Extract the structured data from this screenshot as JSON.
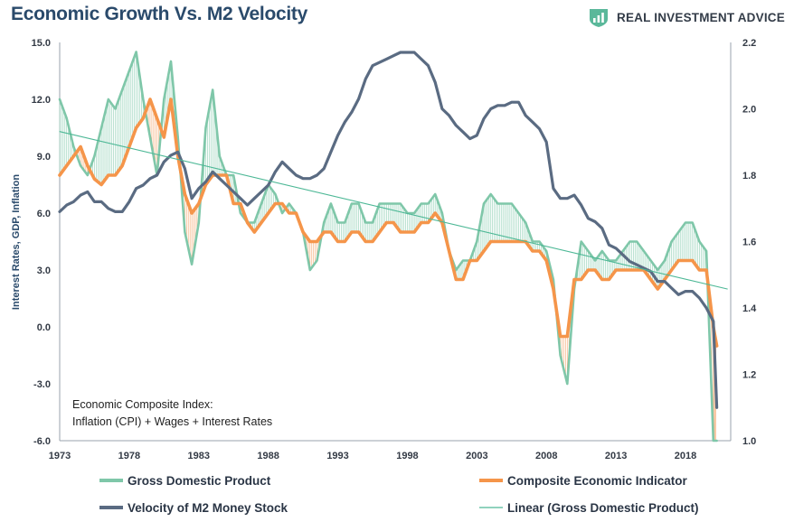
{
  "header": {
    "title": "Economic Growth Vs. M2 Velocity",
    "brand": "REAL INVESTMENT ADVICE",
    "brand_icon": "chart-shield-icon"
  },
  "colors": {
    "gdp": "#7fc7a9",
    "composite": "#f5954a",
    "velocity": "#5a6b82",
    "linear": "#4db896",
    "title": "#2a4a6b"
  },
  "chart_data": {
    "type": "line",
    "title": "Economic Growth Vs. M2 Velocity",
    "ylabel": "Interest Rates, GDP, Inflation",
    "y2label": "",
    "xlim": [
      1973,
      2021.25
    ],
    "ylim": [
      -6.0,
      15.0
    ],
    "y2lim": [
      1.0,
      2.2
    ],
    "x_ticks": [
      "1973",
      "1978",
      "1983",
      "1988",
      "1993",
      "1998",
      "2003",
      "2008",
      "2013",
      "2018"
    ],
    "y_ticks": [
      "15.0",
      "12.0",
      "9.0",
      "6.0",
      "3.0",
      "0.0",
      "-3.0",
      "-6.0"
    ],
    "y2_ticks": [
      "2.2",
      "2.0",
      "1.8",
      "1.6",
      "1.4",
      "1.2",
      "1.0"
    ],
    "grid": false,
    "legend_position": "bottom",
    "annotation": [
      "Economic Composite Index:",
      "Inflation (CPI) + Wages + Interest Rates"
    ],
    "series": [
      {
        "name": "Gross Domestic Product",
        "axis": "left",
        "x": [
          1973.0,
          1973.5,
          1974.0,
          1974.5,
          1975.0,
          1975.5,
          1976.0,
          1976.5,
          1977.0,
          1977.5,
          1978.0,
          1978.5,
          1979.0,
          1979.5,
          1980.0,
          1980.5,
          1981.0,
          1981.5,
          1982.0,
          1982.5,
          1983.0,
          1983.5,
          1984.0,
          1984.5,
          1985.0,
          1985.5,
          1986.0,
          1986.5,
          1987.0,
          1987.5,
          1988.0,
          1988.5,
          1989.0,
          1989.5,
          1990.0,
          1990.5,
          1991.0,
          1991.5,
          1992.0,
          1992.5,
          1993.0,
          1993.5,
          1994.0,
          1994.5,
          1995.0,
          1995.5,
          1996.0,
          1996.5,
          1997.0,
          1997.5,
          1998.0,
          1998.5,
          1999.0,
          1999.5,
          2000.0,
          2000.5,
          2001.0,
          2001.5,
          2002.0,
          2002.5,
          2003.0,
          2003.5,
          2004.0,
          2004.5,
          2005.0,
          2005.5,
          2006.0,
          2006.5,
          2007.0,
          2007.5,
          2008.0,
          2008.5,
          2009.0,
          2009.5,
          2010.0,
          2010.5,
          2011.0,
          2011.5,
          2012.0,
          2012.5,
          2013.0,
          2013.5,
          2014.0,
          2014.5,
          2015.0,
          2015.5,
          2016.0,
          2016.5,
          2017.0,
          2017.5,
          2018.0,
          2018.5,
          2019.0,
          2019.5,
          2020.0,
          2020.25
        ],
        "values": [
          12.0,
          11.0,
          9.5,
          8.5,
          8.0,
          9.0,
          10.5,
          12.0,
          11.5,
          12.5,
          13.5,
          14.5,
          12.0,
          10.0,
          8.0,
          12.0,
          14.0,
          10.0,
          5.0,
          3.3,
          5.5,
          10.5,
          12.5,
          9.0,
          8.0,
          8.0,
          6.0,
          5.5,
          5.5,
          6.5,
          7.5,
          7.0,
          6.0,
          6.5,
          6.0,
          5.0,
          3.0,
          3.5,
          5.5,
          6.5,
          5.5,
          5.5,
          6.5,
          6.5,
          5.5,
          5.5,
          6.5,
          6.5,
          6.5,
          6.5,
          6.0,
          6.0,
          6.5,
          6.5,
          7.0,
          6.0,
          4.0,
          3.0,
          3.5,
          3.5,
          4.5,
          6.5,
          7.0,
          6.5,
          6.5,
          6.5,
          6.0,
          5.5,
          4.5,
          4.5,
          4.0,
          2.5,
          -1.5,
          -3.0,
          2.0,
          4.5,
          4.0,
          3.5,
          4.0,
          3.5,
          3.5,
          4.0,
          4.5,
          4.5,
          4.0,
          3.5,
          3.0,
          3.5,
          4.5,
          5.0,
          5.5,
          5.5,
          4.5,
          4.0,
          -6.0,
          -6.0
        ]
      },
      {
        "name": "Composite Economic Indicator",
        "axis": "left",
        "x": [
          1973.0,
          1973.5,
          1974.0,
          1974.5,
          1975.0,
          1975.5,
          1976.0,
          1976.5,
          1977.0,
          1977.5,
          1978.0,
          1978.5,
          1979.0,
          1979.5,
          1980.0,
          1980.5,
          1981.0,
          1981.5,
          1982.0,
          1982.5,
          1983.0,
          1983.5,
          1984.0,
          1984.5,
          1985.0,
          1985.5,
          1986.0,
          1986.5,
          1987.0,
          1987.5,
          1988.0,
          1988.5,
          1989.0,
          1989.5,
          1990.0,
          1990.5,
          1991.0,
          1991.5,
          1992.0,
          1992.5,
          1993.0,
          1993.5,
          1994.0,
          1994.5,
          1995.0,
          1995.5,
          1996.0,
          1996.5,
          1997.0,
          1997.5,
          1998.0,
          1998.5,
          1999.0,
          1999.5,
          2000.0,
          2000.5,
          2001.0,
          2001.5,
          2002.0,
          2002.5,
          2003.0,
          2003.5,
          2004.0,
          2004.5,
          2005.0,
          2005.5,
          2006.0,
          2006.5,
          2007.0,
          2007.5,
          2008.0,
          2008.5,
          2009.0,
          2009.5,
          2010.0,
          2010.5,
          2011.0,
          2011.5,
          2012.0,
          2012.5,
          2013.0,
          2013.5,
          2014.0,
          2014.5,
          2015.0,
          2015.5,
          2016.0,
          2016.5,
          2017.0,
          2017.5,
          2018.0,
          2018.5,
          2019.0,
          2019.5,
          2020.0,
          2020.25
        ],
        "values": [
          8.0,
          8.5,
          9.0,
          9.5,
          8.5,
          7.8,
          7.5,
          8.0,
          8.0,
          8.5,
          9.5,
          10.5,
          11.0,
          12.0,
          11.0,
          10.0,
          12.0,
          9.0,
          7.0,
          6.0,
          6.5,
          7.5,
          8.0,
          8.0,
          8.0,
          6.5,
          6.5,
          5.5,
          5.0,
          5.5,
          6.0,
          6.5,
          6.5,
          6.0,
          6.0,
          5.0,
          4.5,
          4.5,
          5.0,
          5.0,
          4.5,
          4.5,
          5.0,
          5.0,
          4.5,
          4.5,
          5.0,
          5.5,
          5.5,
          5.0,
          5.0,
          5.0,
          5.5,
          5.5,
          6.0,
          5.5,
          4.0,
          2.5,
          2.5,
          3.5,
          3.5,
          4.0,
          4.5,
          4.5,
          4.5,
          4.5,
          4.5,
          4.5,
          4.0,
          4.0,
          3.5,
          2.0,
          -0.5,
          -0.5,
          2.5,
          2.5,
          3.0,
          3.0,
          2.5,
          2.5,
          3.0,
          3.0,
          3.0,
          3.0,
          3.0,
          2.5,
          2.0,
          2.5,
          3.0,
          3.5,
          3.5,
          3.5,
          3.0,
          3.0,
          0.0,
          -1.0
        ]
      },
      {
        "name": "Velocity of M2 Money Stock",
        "axis": "right",
        "x": [
          1973.0,
          1973.5,
          1974.0,
          1974.5,
          1975.0,
          1975.5,
          1976.0,
          1976.5,
          1977.0,
          1977.5,
          1978.0,
          1978.5,
          1979.0,
          1979.5,
          1980.0,
          1980.5,
          1981.0,
          1981.5,
          1982.0,
          1982.5,
          1983.0,
          1983.5,
          1984.0,
          1984.5,
          1985.0,
          1985.5,
          1986.0,
          1986.5,
          1987.0,
          1987.5,
          1988.0,
          1988.5,
          1989.0,
          1989.5,
          1990.0,
          1990.5,
          1991.0,
          1991.5,
          1992.0,
          1992.5,
          1993.0,
          1993.5,
          1994.0,
          1994.5,
          1995.0,
          1995.5,
          1996.0,
          1996.5,
          1997.0,
          1997.5,
          1998.0,
          1998.5,
          1999.0,
          1999.5,
          2000.0,
          2000.5,
          2001.0,
          2001.5,
          2002.0,
          2002.5,
          2003.0,
          2003.5,
          2004.0,
          2004.5,
          2005.0,
          2005.5,
          2006.0,
          2006.5,
          2007.0,
          2007.5,
          2008.0,
          2008.5,
          2009.0,
          2009.5,
          2010.0,
          2010.5,
          2011.0,
          2011.5,
          2012.0,
          2012.5,
          2013.0,
          2013.5,
          2014.0,
          2014.5,
          2015.0,
          2015.5,
          2016.0,
          2016.5,
          2017.0,
          2017.5,
          2018.0,
          2018.5,
          2019.0,
          2019.5,
          2020.0,
          2020.25
        ],
        "values": [
          1.69,
          1.71,
          1.72,
          1.74,
          1.75,
          1.72,
          1.72,
          1.7,
          1.69,
          1.69,
          1.72,
          1.76,
          1.77,
          1.79,
          1.8,
          1.84,
          1.86,
          1.87,
          1.82,
          1.73,
          1.76,
          1.78,
          1.81,
          1.79,
          1.77,
          1.75,
          1.73,
          1.71,
          1.73,
          1.75,
          1.77,
          1.81,
          1.84,
          1.82,
          1.8,
          1.79,
          1.79,
          1.8,
          1.82,
          1.87,
          1.92,
          1.96,
          1.99,
          2.03,
          2.09,
          2.13,
          2.14,
          2.15,
          2.16,
          2.17,
          2.17,
          2.17,
          2.15,
          2.13,
          2.08,
          2.0,
          1.98,
          1.95,
          1.93,
          1.91,
          1.92,
          1.97,
          2.0,
          2.01,
          2.01,
          2.02,
          2.02,
          1.98,
          1.96,
          1.94,
          1.9,
          1.76,
          1.73,
          1.73,
          1.74,
          1.71,
          1.67,
          1.66,
          1.64,
          1.59,
          1.58,
          1.56,
          1.54,
          1.53,
          1.52,
          1.51,
          1.48,
          1.48,
          1.46,
          1.44,
          1.45,
          1.45,
          1.43,
          1.4,
          1.36,
          1.1
        ]
      },
      {
        "name": "Linear (Gross Domestic Product)",
        "axis": "left",
        "x": [
          1973.0,
          2021.0
        ],
        "values": [
          10.3,
          2.0
        ]
      }
    ]
  }
}
